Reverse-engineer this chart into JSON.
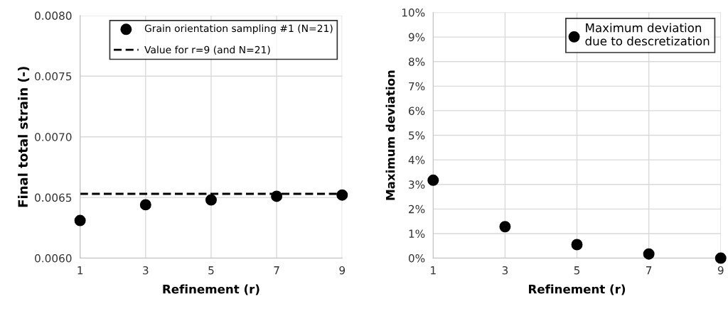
{
  "chart_data": [
    {
      "type": "scatter",
      "xlabel": "Refinement (r)",
      "ylabel": "Final total strain (-)",
      "x": [
        1,
        3,
        5,
        7,
        9
      ],
      "series": [
        {
          "name": "Grain orientation sampling #1 (N=21)",
          "color": "#000000",
          "values": [
            0.00631,
            0.00644,
            0.00648,
            0.00651,
            0.00652
          ],
          "marker": "circle"
        },
        {
          "name": "Value for r=9 (and N=21)",
          "type": "line",
          "color": "#000000",
          "x": [
            1,
            9
          ],
          "values": [
            0.00653,
            0.00653
          ],
          "line_style": "dashed",
          "marker": "none"
        }
      ],
      "xlim": [
        1,
        9
      ],
      "xticks": [
        1,
        3,
        5,
        7,
        9
      ],
      "ylim": [
        0.006,
        0.008
      ],
      "yticks": [
        {
          "value": 0.006,
          "label": "0.0060"
        },
        {
          "value": 0.0065,
          "label": "0.0065"
        },
        {
          "value": 0.007,
          "label": "0.0070"
        },
        {
          "value": 0.0075,
          "label": "0.0075"
        },
        {
          "value": 0.008,
          "label": "0.0080"
        }
      ],
      "grid": true,
      "legend": "top right"
    },
    {
      "type": "scatter",
      "xlabel": "Refinement (r)",
      "ylabel": "Maximum deviation",
      "x": [
        1,
        3,
        5,
        7,
        9
      ],
      "series": [
        {
          "name": "Maximum deviation\ndue to descretization",
          "color": "#000000",
          "values": [
            3.17,
            1.28,
            0.55,
            0.17,
            0
          ],
          "marker": "circle"
        }
      ],
      "xlim": [
        1,
        9
      ],
      "xticks": [
        1,
        3,
        5,
        7,
        9
      ],
      "ylim": [
        0,
        10
      ],
      "yticks": [
        {
          "value": 0,
          "label": "0%"
        },
        {
          "value": 1,
          "label": "1%"
        },
        {
          "value": 2,
          "label": "2%"
        },
        {
          "value": 3,
          "label": "3%"
        },
        {
          "value": 4,
          "label": "4%"
        },
        {
          "value": 5,
          "label": "5%"
        },
        {
          "value": 6,
          "label": "6%"
        },
        {
          "value": 7,
          "label": "7%"
        },
        {
          "value": 8,
          "label": "8%"
        },
        {
          "value": 9,
          "label": "9%"
        },
        {
          "value": 10,
          "label": "10%"
        }
      ],
      "grid": true,
      "legend": "top right"
    }
  ]
}
